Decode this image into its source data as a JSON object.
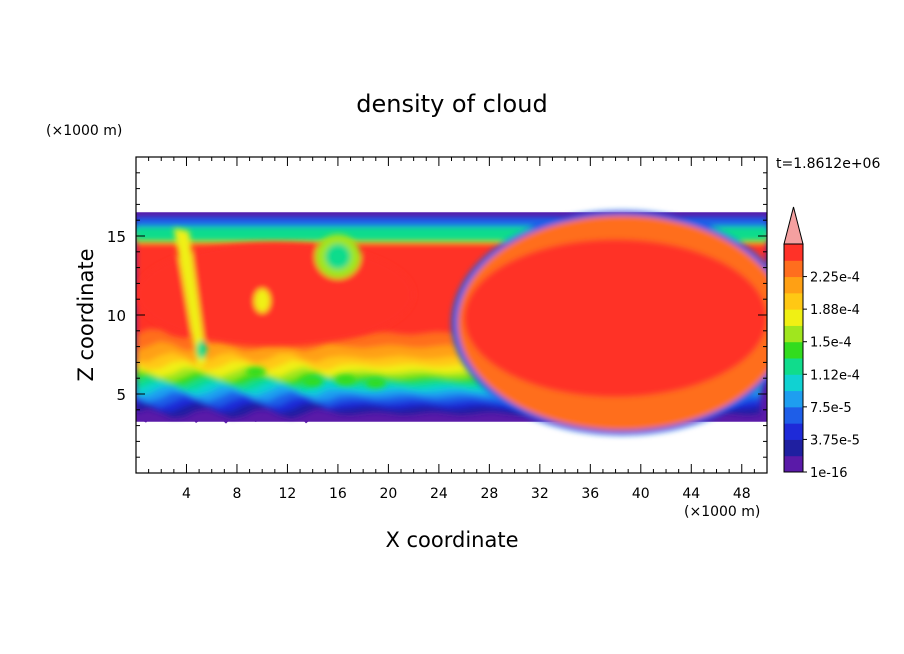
{
  "chart_data": {
    "type": "heatmap",
    "title": "density of cloud",
    "time_label": "t=1.8612e+06",
    "xlabel": "X coordinate",
    "ylabel": "Z coordinate",
    "x_unit": "(×1000 m)",
    "y_unit": "(×1000 m)",
    "xlim": [
      0,
      50
    ],
    "ylim": [
      0,
      20
    ],
    "x_ticks": [
      4,
      8,
      12,
      16,
      20,
      24,
      28,
      32,
      36,
      40,
      44,
      48
    ],
    "y_ticks": [
      5,
      10,
      15
    ],
    "colorbar": {
      "tick_labels": [
        "2.25e-4",
        "1.88e-4",
        "1.5e-4",
        "1.12e-4",
        "7.5e-5",
        "3.75e-5",
        "1e-16"
      ],
      "levels": [
        1e-16,
        1.875e-05,
        3.75e-05,
        5.625e-05,
        7.5e-05,
        9.375e-05,
        0.000112,
        0.000131,
        0.00015,
        0.000169,
        0.000188,
        0.000206,
        0.000225,
        0.000244
      ],
      "colors": [
        "#5a1aa8",
        "#1f1fa0",
        "#1e2ad8",
        "#1e5ee8",
        "#1e9ef0",
        "#10d2d2",
        "#10dc8c",
        "#32dc1e",
        "#a0e61e",
        "#f0f014",
        "#ffc814",
        "#ffa014",
        "#ff6e1e",
        "#ff3228"
      ],
      "overflow_color": "#f4a0a0",
      "extend": "max"
    },
    "cloud_layer": {
      "base_z": 3.5,
      "top_z": 16.5,
      "core_value_range": [
        0.000225,
        0.000244
      ]
    }
  },
  "colors": {
    "background": "#ffffff",
    "axis": "#000000"
  }
}
